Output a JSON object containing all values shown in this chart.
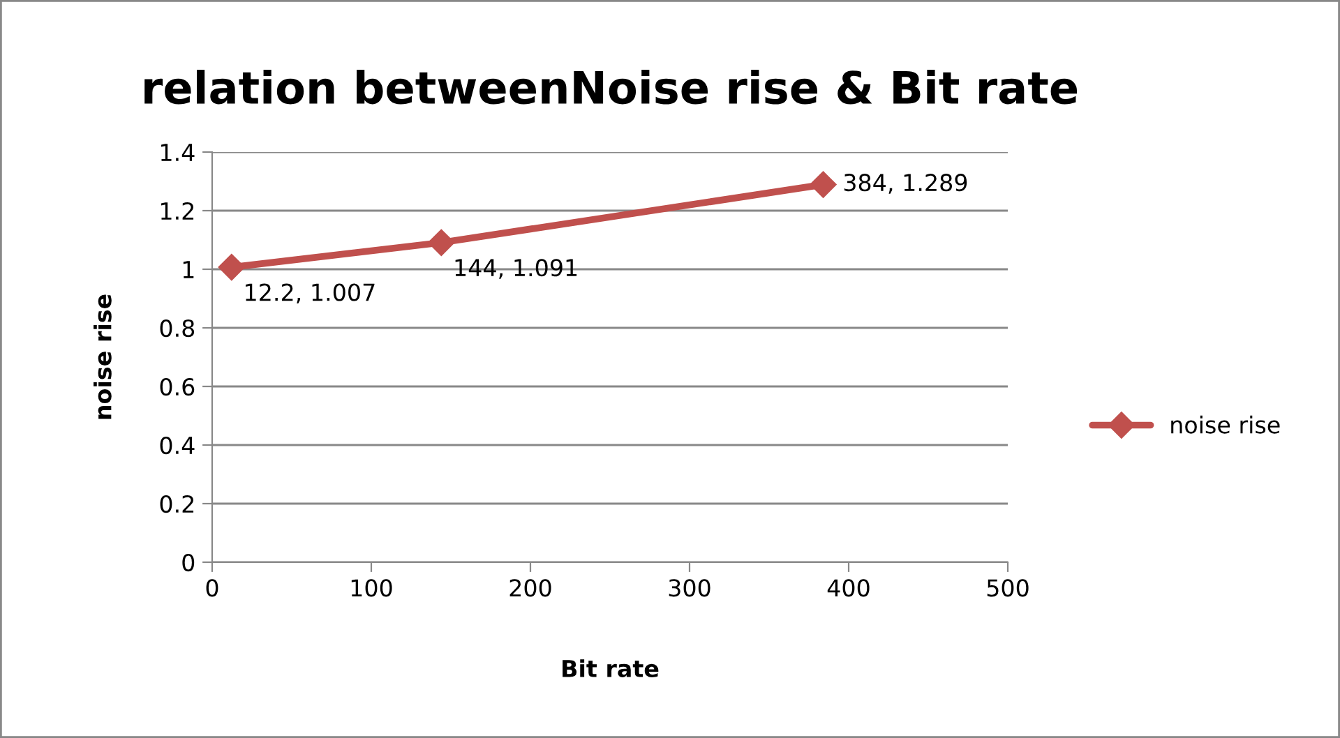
{
  "chart_data": {
    "type": "line",
    "title": "relation betweenNoise rise & Bit rate",
    "xlabel": "Bit rate",
    "ylabel": "noise rise",
    "x": [
      12.2,
      144,
      384
    ],
    "series": [
      {
        "name": "noise rise",
        "color": "#c0504d",
        "values": [
          1.007,
          1.091,
          1.289
        ],
        "value_labels": [
          "12.2, 1.007",
          "144, 1.091",
          "384, 1.289"
        ]
      }
    ],
    "xlim": [
      0,
      500
    ],
    "xticks": [
      0,
      100,
      200,
      300,
      400,
      500
    ],
    "ylim": [
      0,
      1.4
    ],
    "yticks": [
      0,
      0.2,
      0.4,
      0.6,
      0.8,
      1,
      1.2,
      1.4
    ],
    "grid": "y",
    "legend": "right",
    "marker": "diamond",
    "line_style": "solid"
  }
}
